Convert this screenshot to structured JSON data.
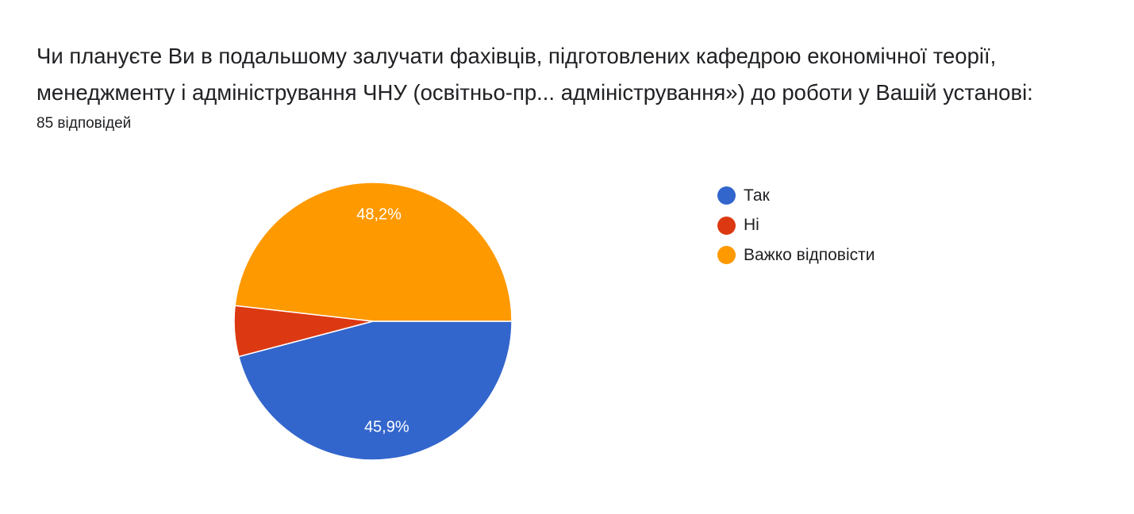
{
  "question": {
    "title_line1": "Чи плануєте Ви в подальшому залучати фахівців, підготовлених кафедрою економічної теорії,",
    "title_line2": "менеджменту і адміністрування ЧНУ (освітньо-пр... адміністрування») до роботи у Вашій установі:",
    "response_count": "85 відповідей"
  },
  "chart_data": {
    "type": "pie",
    "title": "Чи плануєте Ви в подальшому залучати фахівців, підготовлених кафедрою економічної теорії, менеджменту і адміністрування ЧНУ (освітньо-пр... адміністрування») до роботи у Вашій установі:",
    "total_responses": 85,
    "categories": [
      "Так",
      "Ні",
      "Важко відповісти"
    ],
    "values": [
      45.9,
      5.9,
      48.2
    ],
    "data_labels": [
      "45,9%",
      "",
      "48,2%"
    ],
    "colors": [
      "#3366cc",
      "#dc3912",
      "#ff9900"
    ],
    "legend_position": "right",
    "start_angle": "3 o'clock",
    "direction": "clockwise"
  }
}
